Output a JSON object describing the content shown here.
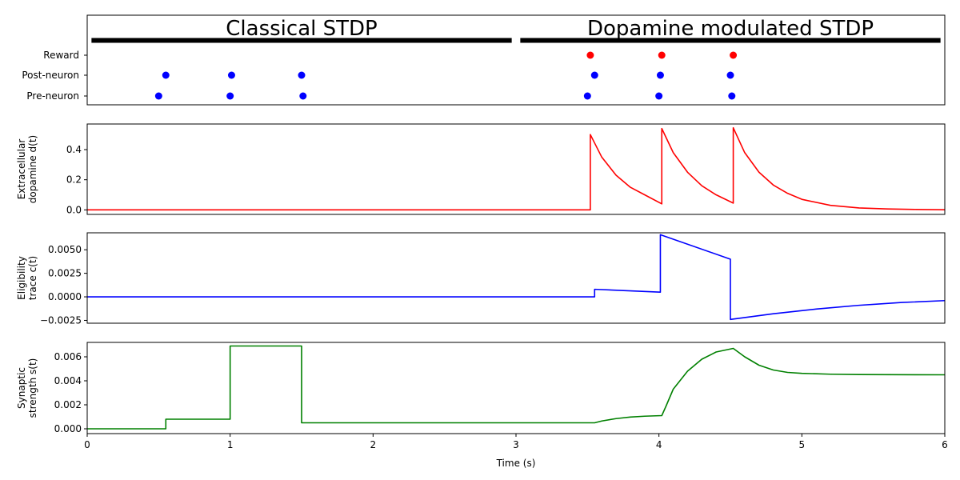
{
  "chart_data": [
    {
      "type": "scatter",
      "categories": [
        "Pre-neuron",
        "Post-neuron",
        "Reward"
      ],
      "xlim": [
        0,
        6
      ],
      "phases": [
        {
          "label": "Classical STDP",
          "x_start": 0.03,
          "x_end": 2.97
        },
        {
          "label": "Dopamine modulated STDP",
          "x_start": 3.03,
          "x_end": 5.97
        }
      ],
      "series": [
        {
          "name": "Pre-neuron",
          "category": "Pre-neuron",
          "color": "#0000ff",
          "x": [
            0.5,
            1.0,
            1.51,
            3.5,
            4.0,
            4.51
          ]
        },
        {
          "name": "Post-neuron",
          "category": "Post-neuron",
          "color": "#0000ff",
          "x": [
            0.55,
            1.01,
            1.5,
            3.55,
            4.01,
            4.5
          ]
        },
        {
          "name": "Reward",
          "category": "Reward",
          "color": "#ff0000",
          "x": [
            3.52,
            4.02,
            4.52
          ]
        }
      ]
    },
    {
      "type": "line",
      "ylabel": "Extracellular\ndopamine d(t)",
      "ylim": [
        -0.03,
        0.57
      ],
      "yticks": [
        0.0,
        0.2,
        0.4
      ],
      "ytick_labels": [
        "0.0",
        "0.2",
        "0.4"
      ],
      "color": "#ff0000",
      "x": [
        0,
        3.52,
        3.52,
        3.6,
        3.7,
        3.8,
        3.9,
        4.02,
        4.02,
        4.1,
        4.2,
        4.3,
        4.4,
        4.52,
        4.52,
        4.6,
        4.7,
        4.8,
        4.9,
        5.0,
        5.2,
        5.4,
        5.6,
        5.8,
        6.0
      ],
      "y": [
        0,
        0,
        0.5,
        0.35,
        0.23,
        0.15,
        0.1,
        0.04,
        0.54,
        0.38,
        0.25,
        0.16,
        0.1,
        0.045,
        0.545,
        0.38,
        0.25,
        0.165,
        0.11,
        0.07,
        0.03,
        0.013,
        0.006,
        0.003,
        0.001
      ]
    },
    {
      "type": "line",
      "ylabel": "Eligibility\ntrace c(t)",
      "ylim": [
        -0.0028,
        0.0068
      ],
      "yticks": [
        -0.0025,
        0.0,
        0.0025,
        0.005
      ],
      "ytick_labels": [
        "−0.0025",
        "0.0000",
        "0.0025",
        "0.0050"
      ],
      "color": "#0000ff",
      "x": [
        0,
        3.55,
        3.55,
        4.01,
        4.01,
        4.5,
        4.5,
        4.8,
        5.1,
        5.4,
        5.7,
        6.0
      ],
      "y": [
        0,
        0,
        0.0008,
        0.0005,
        0.0066,
        0.004,
        -0.0024,
        -0.0018,
        -0.0013,
        -0.0009,
        -0.0006,
        -0.0004
      ]
    },
    {
      "type": "line",
      "xlabel": "Time (s)",
      "ylabel": "Synaptic\nstrength s(t)",
      "xlim": [
        0,
        6
      ],
      "xticks": [
        0,
        1,
        2,
        3,
        4,
        5,
        6
      ],
      "xtick_labels": [
        "0",
        "1",
        "2",
        "3",
        "4",
        "5",
        "6"
      ],
      "ylim": [
        -0.0004,
        0.0072
      ],
      "yticks": [
        0.0,
        0.002,
        0.004,
        0.006
      ],
      "ytick_labels": [
        "0.000",
        "0.002",
        "0.004",
        "0.006"
      ],
      "color": "#008000",
      "x": [
        0,
        0.55,
        0.55,
        1.0,
        1.0,
        1.5,
        1.5,
        3.55,
        3.6,
        3.7,
        3.8,
        3.9,
        4.02,
        4.05,
        4.1,
        4.2,
        4.3,
        4.4,
        4.52,
        4.6,
        4.7,
        4.8,
        4.9,
        5.0,
        5.2,
        5.4,
        6.0
      ],
      "y": [
        0,
        0,
        0.0008,
        0.0008,
        0.0069,
        0.0069,
        0.0005,
        0.0005,
        0.00065,
        0.00085,
        0.00098,
        0.00105,
        0.0011,
        0.0019,
        0.0033,
        0.0048,
        0.0058,
        0.0064,
        0.0067,
        0.006,
        0.0053,
        0.0049,
        0.0047,
        0.00462,
        0.00455,
        0.00452,
        0.0045
      ]
    }
  ]
}
